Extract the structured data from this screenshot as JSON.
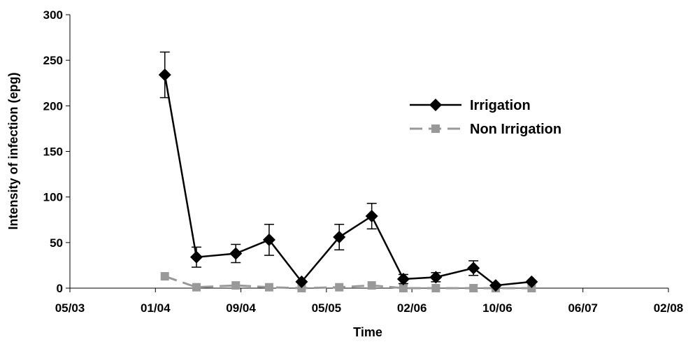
{
  "chart_data": {
    "type": "line",
    "title": "",
    "xlabel": "Time",
    "ylabel": "Intensity of infection (epg)",
    "ylim": [
      0,
      300
    ],
    "yticks": [
      0,
      50,
      100,
      150,
      200,
      250,
      300
    ],
    "xticks": [
      "05/03",
      "01/04",
      "09/04",
      "05/05",
      "02/06",
      "10/06",
      "06/07",
      "02/08"
    ],
    "xlim_index": [
      0,
      7
    ],
    "legend_position": "right",
    "grid": false,
    "series": [
      {
        "name": "Irrigation",
        "color": "#000000",
        "marker": "diamond",
        "line": "solid",
        "x": [
          1.11,
          1.48,
          1.94,
          2.33,
          2.71,
          3.15,
          3.53,
          3.9,
          4.28,
          4.72,
          4.98,
          5.4
        ],
        "y": [
          234,
          34,
          38,
          53,
          7,
          56,
          79,
          10,
          12,
          22,
          3,
          7
        ],
        "error": [
          25,
          11,
          10,
          17,
          0,
          14,
          14,
          5,
          5,
          8,
          0,
          0
        ]
      },
      {
        "name": "Non Irrigation",
        "color": "#999999",
        "marker": "square",
        "line": "dashed",
        "x": [
          1.11,
          1.48,
          1.94,
          2.33,
          2.71,
          3.15,
          3.53,
          3.9,
          4.28,
          4.72,
          4.98,
          5.4
        ],
        "y": [
          13,
          1,
          3,
          1,
          0,
          1,
          3,
          0,
          0,
          0,
          0,
          0
        ]
      }
    ]
  }
}
